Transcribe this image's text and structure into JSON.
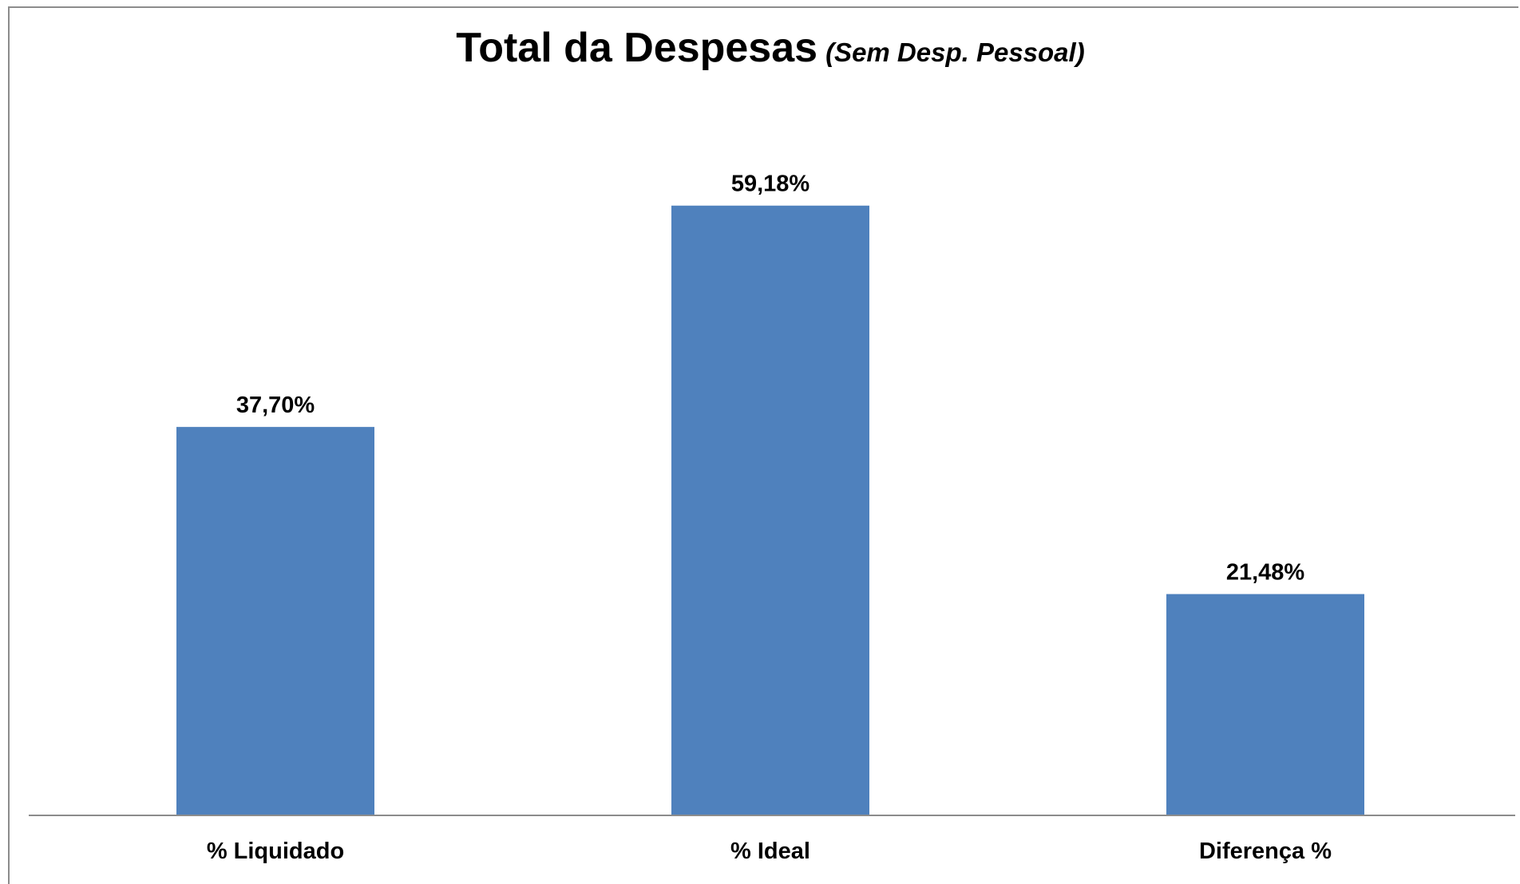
{
  "chart_data": {
    "type": "bar",
    "title": "Total da Despesas",
    "subtitle": "(Sem Desp. Pessoal)",
    "categories": [
      "% Liquidado",
      "% Ideal",
      "Diferença %"
    ],
    "values": [
      37.7,
      59.18,
      21.48
    ],
    "value_labels": [
      "37,70%",
      "59,18%",
      "21,48%"
    ],
    "xlabel": "",
    "ylabel": "",
    "ylim": [
      0,
      70
    ],
    "grid": false,
    "legend": "none",
    "colors": {
      "bar": "#4f81bd",
      "axis": "#8c8c8c",
      "text": "#000000"
    }
  }
}
